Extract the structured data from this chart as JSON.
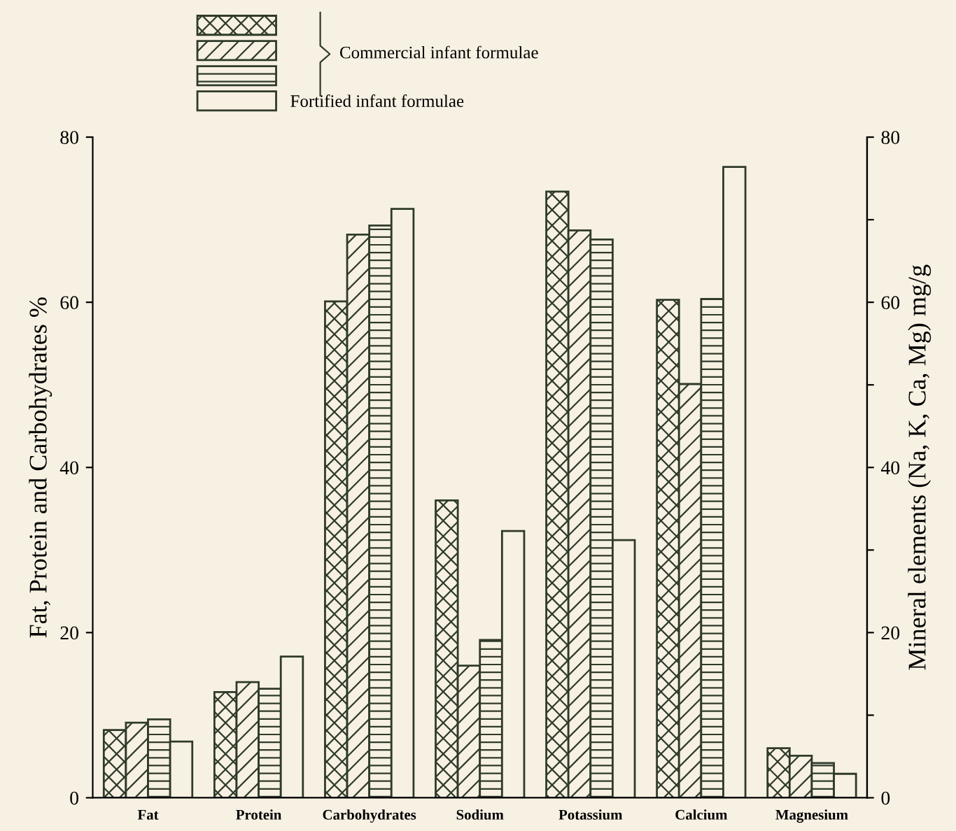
{
  "chart_data": {
    "type": "bar",
    "ylabel": "Fat, Protein and Carbohydrates %",
    "y2label": "Mineral elements (Na, K, Ca, Mg) mg/g",
    "categories": [
      "Fat",
      "Protein",
      "Carbohydrates",
      "Sodium",
      "Potassium",
      "Calcium",
      "Magnesium"
    ],
    "series": [
      {
        "color": "#2f3a2a",
        "values": [
          8.2,
          12.8,
          60.1,
          36.0,
          73.4,
          60.3,
          6.0
        ]
      },
      {
        "color": "#2f3a2a",
        "values": [
          9.1,
          14.0,
          68.2,
          16.0,
          68.7,
          50.1,
          5.1
        ]
      },
      {
        "color": "#2f3a2a",
        "values": [
          9.5,
          13.2,
          69.3,
          19.1,
          67.6,
          60.4,
          4.2
        ]
      },
      {
        "name": "Fortified infant formulae",
        "color": "#2f3a2a",
        "values": [
          6.8,
          17.1,
          71.3,
          32.3,
          31.2,
          76.4,
          2.9
        ]
      }
    ],
    "ylim": [
      0,
      80
    ],
    "yticks": [
      0,
      20,
      40,
      60,
      80
    ],
    "y2lim": [
      0,
      80
    ],
    "y2ticks": [
      0,
      {
        "value": 10,
        "label": null
      },
      20,
      {
        "value": 30,
        "label": null
      },
      40,
      {
        "value": 50,
        "label": null
      },
      60,
      {
        "value": 70,
        "label": null
      },
      80
    ],
    "annotations": [
      "Commercial infant formulae"
    ],
    "legend": "top left",
    "grid": false
  }
}
